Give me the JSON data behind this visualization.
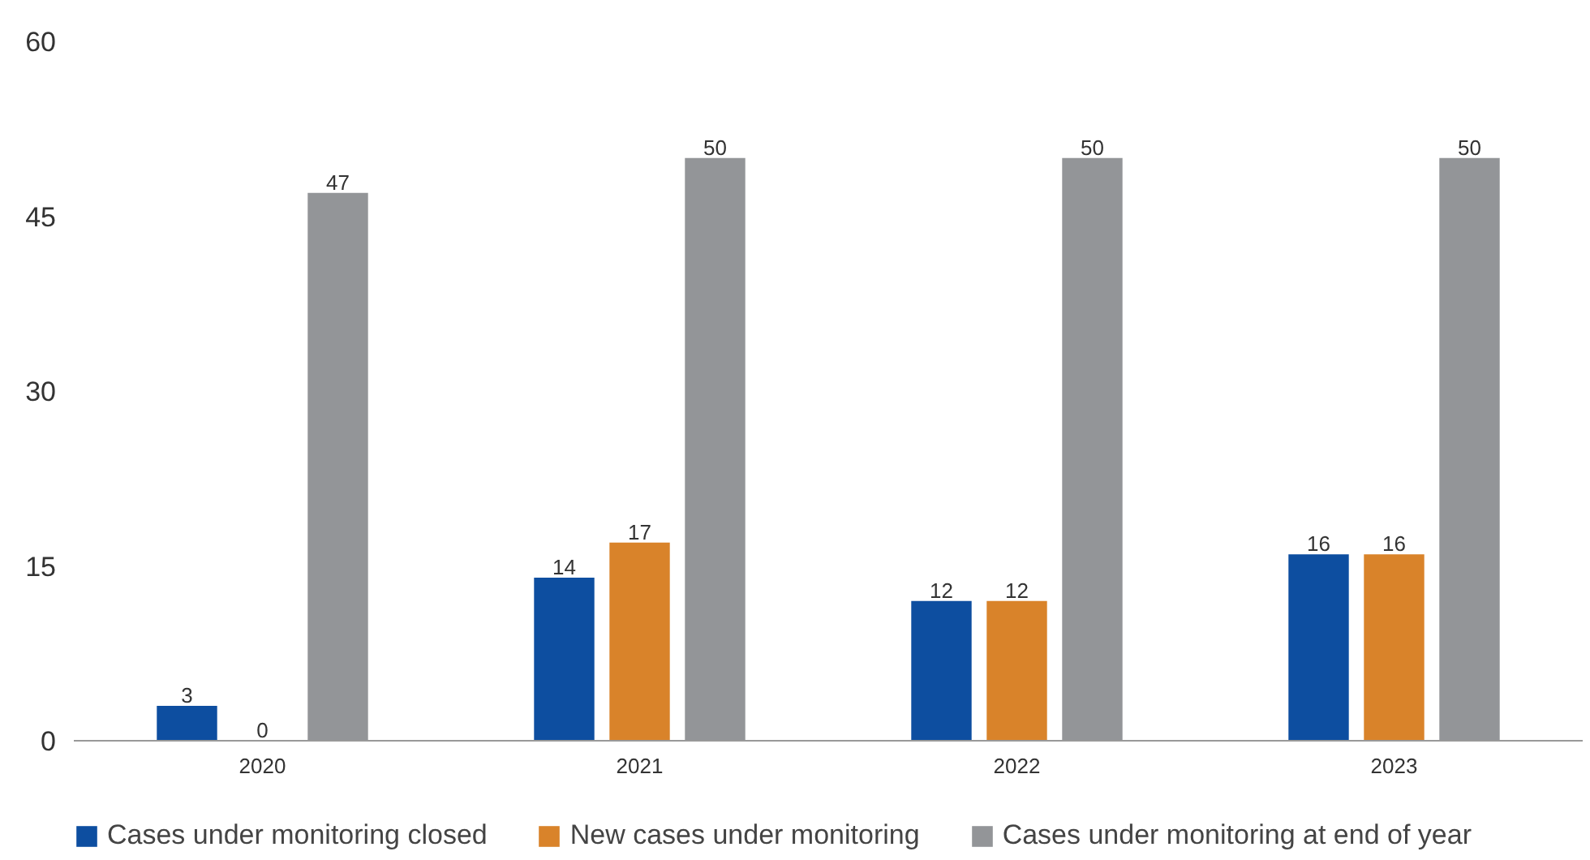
{
  "chart_data": {
    "type": "bar",
    "categories": [
      "2020",
      "2021",
      "2022",
      "2023"
    ],
    "series": [
      {
        "name": "Cases under monitoring closed",
        "color": "#0d4ea0",
        "values": [
          3,
          14,
          12,
          16
        ]
      },
      {
        "name": "New cases under monitoring",
        "color": "#d9832a",
        "values": [
          0,
          17,
          12,
          16
        ]
      },
      {
        "name": "Cases under monitoring at end of year",
        "color": "#939598",
        "values": [
          47,
          50,
          50,
          50
        ]
      }
    ],
    "ylim": [
      0,
      60
    ],
    "yticks": [
      0,
      15,
      30,
      45,
      60
    ],
    "grid": false,
    "legend": "bottom",
    "data_labels": true
  }
}
